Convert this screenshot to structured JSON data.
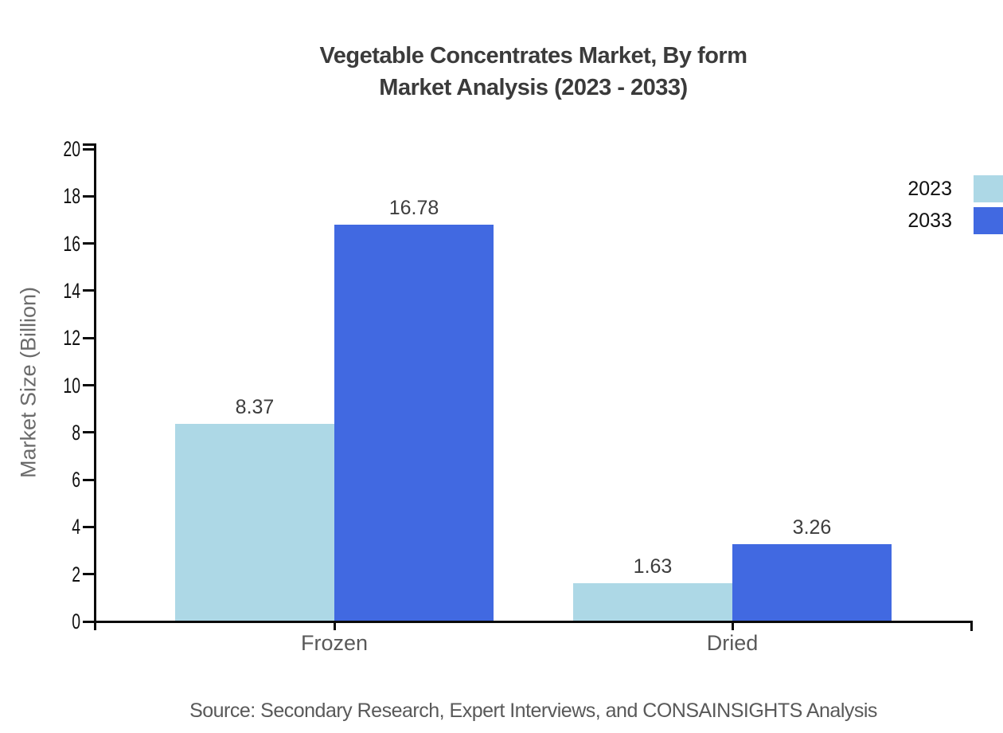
{
  "title": {
    "line1": "Vegetable Concentrates Market, By form",
    "line2": "Market Analysis (2023 - 2033)"
  },
  "source_note": "Source: Secondary Research, Expert Interviews, and CONSAINSIGHTS Analysis",
  "legend": {
    "items": [
      {
        "label": "2023",
        "color": "#ADD8E6"
      },
      {
        "label": "2033",
        "color": "#4169E1"
      }
    ]
  },
  "chart_data": {
    "type": "bar",
    "title": "Vegetable Concentrates Market, By form Market Analysis (2023 - 2033)",
    "categories": [
      "Frozen",
      "Dried"
    ],
    "series": [
      {
        "name": "2023",
        "color": "#ADD8E6",
        "values": [
          8.37,
          1.63
        ]
      },
      {
        "name": "2033",
        "color": "#4169E1",
        "values": [
          16.78,
          3.26
        ]
      }
    ],
    "xlabel": "",
    "ylabel": "Market Size (Billion)",
    "ylim": [
      0,
      20
    ],
    "ytick_interval": 2,
    "grid": false,
    "legend_position": "top-right",
    "axis_color": "#0a0a0a",
    "value_labels": [
      [
        "8.37",
        "1.63"
      ],
      [
        "16.78",
        "3.26"
      ]
    ]
  }
}
